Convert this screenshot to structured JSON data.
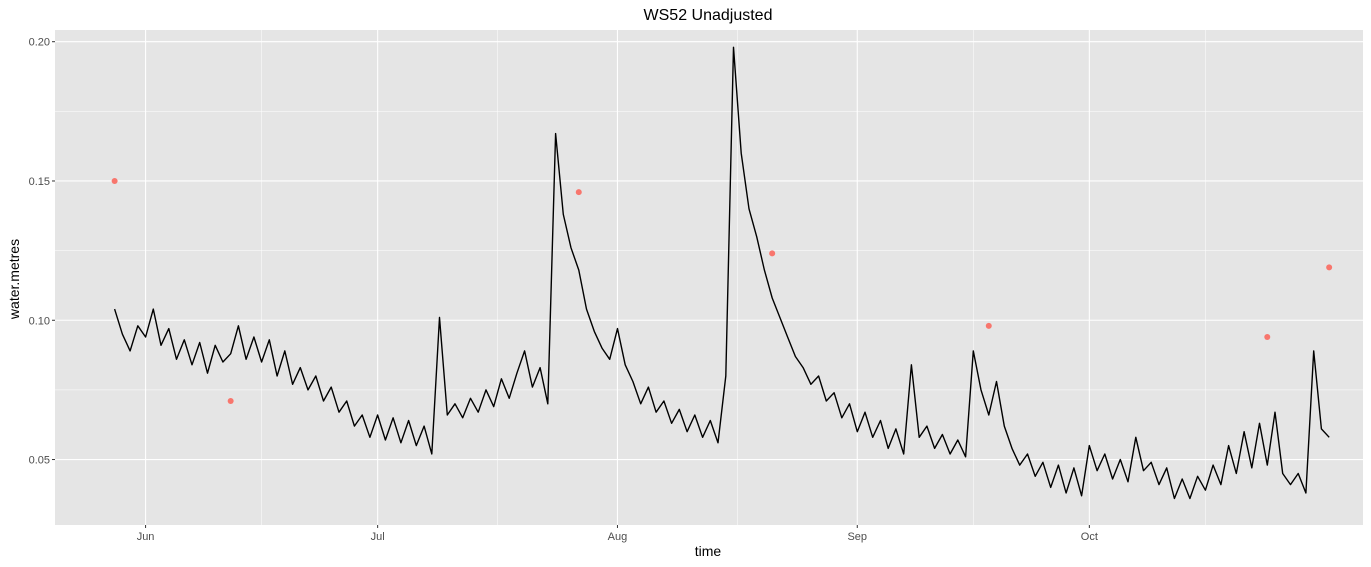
{
  "chart_data": {
    "type": "line",
    "title": "WS52 Unadjusted",
    "xlabel": "time",
    "ylabel": "water.metres",
    "x_ticks": [
      {
        "date": "2019-06-01",
        "label": "Jun"
      },
      {
        "date": "2019-07-01",
        "label": "Jul"
      },
      {
        "date": "2019-08-01",
        "label": "Aug"
      },
      {
        "date": "2019-09-01",
        "label": "Sep"
      },
      {
        "date": "2019-10-01",
        "label": "Oct"
      }
    ],
    "y_ticks": [
      0.05,
      0.1,
      0.15,
      0.2
    ],
    "y_tick_labels": [
      "0.05",
      "0.10",
      "0.15",
      "0.20"
    ],
    "xlim": [
      "2019-05-20T07:00",
      "2019-11-05T09:00"
    ],
    "ylim": [
      0.0265,
      0.2042
    ],
    "grid": true,
    "legend": "none",
    "colors": {
      "panel": "#e5e5e5",
      "grid": "#ffffff",
      "line": "#000000",
      "points": "#f8766d"
    },
    "series": [
      {
        "kind": "line",
        "points": [
          [
            "2019-05-28",
            0.104
          ],
          [
            "2019-05-29",
            0.095
          ],
          [
            "2019-05-30",
            0.089
          ],
          [
            "2019-05-31",
            0.098
          ],
          [
            "2019-06-01",
            0.094
          ],
          [
            "2019-06-02",
            0.104
          ],
          [
            "2019-06-03",
            0.091
          ],
          [
            "2019-06-04",
            0.097
          ],
          [
            "2019-06-05",
            0.086
          ],
          [
            "2019-06-06",
            0.093
          ],
          [
            "2019-06-07",
            0.084
          ],
          [
            "2019-06-08",
            0.092
          ],
          [
            "2019-06-09",
            0.081
          ],
          [
            "2019-06-10",
            0.091
          ],
          [
            "2019-06-11",
            0.085
          ],
          [
            "2019-06-12",
            0.088
          ],
          [
            "2019-06-13",
            0.098
          ],
          [
            "2019-06-14",
            0.086
          ],
          [
            "2019-06-15",
            0.094
          ],
          [
            "2019-06-16",
            0.085
          ],
          [
            "2019-06-17",
            0.093
          ],
          [
            "2019-06-18",
            0.08
          ],
          [
            "2019-06-19",
            0.089
          ],
          [
            "2019-06-20",
            0.077
          ],
          [
            "2019-06-21",
            0.083
          ],
          [
            "2019-06-22",
            0.075
          ],
          [
            "2019-06-23",
            0.08
          ],
          [
            "2019-06-24",
            0.071
          ],
          [
            "2019-06-25",
            0.076
          ],
          [
            "2019-06-26",
            0.067
          ],
          [
            "2019-06-27",
            0.071
          ],
          [
            "2019-06-28",
            0.062
          ],
          [
            "2019-06-29",
            0.066
          ],
          [
            "2019-06-30",
            0.058
          ],
          [
            "2019-07-01",
            0.066
          ],
          [
            "2019-07-02",
            0.057
          ],
          [
            "2019-07-03",
            0.065
          ],
          [
            "2019-07-04",
            0.056
          ],
          [
            "2019-07-05",
            0.064
          ],
          [
            "2019-07-06",
            0.055
          ],
          [
            "2019-07-07",
            0.062
          ],
          [
            "2019-07-08",
            0.052
          ],
          [
            "2019-07-09",
            0.101
          ],
          [
            "2019-07-10",
            0.066
          ],
          [
            "2019-07-11",
            0.07
          ],
          [
            "2019-07-12",
            0.065
          ],
          [
            "2019-07-13",
            0.072
          ],
          [
            "2019-07-14",
            0.067
          ],
          [
            "2019-07-15",
            0.075
          ],
          [
            "2019-07-16",
            0.069
          ],
          [
            "2019-07-17",
            0.079
          ],
          [
            "2019-07-18",
            0.072
          ],
          [
            "2019-07-19",
            0.081
          ],
          [
            "2019-07-20",
            0.089
          ],
          [
            "2019-07-21",
            0.076
          ],
          [
            "2019-07-22",
            0.083
          ],
          [
            "2019-07-23",
            0.07
          ],
          [
            "2019-07-24",
            0.167
          ],
          [
            "2019-07-25",
            0.138
          ],
          [
            "2019-07-26",
            0.126
          ],
          [
            "2019-07-27",
            0.118
          ],
          [
            "2019-07-28",
            0.104
          ],
          [
            "2019-07-29",
            0.096
          ],
          [
            "2019-07-30",
            0.09
          ],
          [
            "2019-07-31",
            0.086
          ],
          [
            "2019-08-01",
            0.097
          ],
          [
            "2019-08-02",
            0.084
          ],
          [
            "2019-08-03",
            0.078
          ],
          [
            "2019-08-04",
            0.07
          ],
          [
            "2019-08-05",
            0.076
          ],
          [
            "2019-08-06",
            0.067
          ],
          [
            "2019-08-07",
            0.071
          ],
          [
            "2019-08-08",
            0.063
          ],
          [
            "2019-08-09",
            0.068
          ],
          [
            "2019-08-10",
            0.06
          ],
          [
            "2019-08-11",
            0.066
          ],
          [
            "2019-08-12",
            0.058
          ],
          [
            "2019-08-13",
            0.064
          ],
          [
            "2019-08-14",
            0.056
          ],
          [
            "2019-08-15",
            0.08
          ],
          [
            "2019-08-16",
            0.198
          ],
          [
            "2019-08-17",
            0.16
          ],
          [
            "2019-08-18",
            0.14
          ],
          [
            "2019-08-19",
            0.13
          ],
          [
            "2019-08-20",
            0.118
          ],
          [
            "2019-08-21",
            0.108
          ],
          [
            "2019-08-22",
            0.101
          ],
          [
            "2019-08-23",
            0.094
          ],
          [
            "2019-08-24",
            0.087
          ],
          [
            "2019-08-25",
            0.083
          ],
          [
            "2019-08-26",
            0.077
          ],
          [
            "2019-08-27",
            0.08
          ],
          [
            "2019-08-28",
            0.071
          ],
          [
            "2019-08-29",
            0.074
          ],
          [
            "2019-08-30",
            0.065
          ],
          [
            "2019-08-31",
            0.07
          ],
          [
            "2019-09-01",
            0.06
          ],
          [
            "2019-09-02",
            0.067
          ],
          [
            "2019-09-03",
            0.058
          ],
          [
            "2019-09-04",
            0.064
          ],
          [
            "2019-09-05",
            0.054
          ],
          [
            "2019-09-06",
            0.061
          ],
          [
            "2019-09-07",
            0.052
          ],
          [
            "2019-09-08",
            0.084
          ],
          [
            "2019-09-09",
            0.058
          ],
          [
            "2019-09-10",
            0.062
          ],
          [
            "2019-09-11",
            0.054
          ],
          [
            "2019-09-12",
            0.059
          ],
          [
            "2019-09-13",
            0.052
          ],
          [
            "2019-09-14",
            0.057
          ],
          [
            "2019-09-15",
            0.051
          ],
          [
            "2019-09-16",
            0.089
          ],
          [
            "2019-09-17",
            0.075
          ],
          [
            "2019-09-18",
            0.066
          ],
          [
            "2019-09-19",
            0.078
          ],
          [
            "2019-09-20",
            0.062
          ],
          [
            "2019-09-21",
            0.054
          ],
          [
            "2019-09-22",
            0.048
          ],
          [
            "2019-09-23",
            0.052
          ],
          [
            "2019-09-24",
            0.044
          ],
          [
            "2019-09-25",
            0.049
          ],
          [
            "2019-09-26",
            0.04
          ],
          [
            "2019-09-27",
            0.048
          ],
          [
            "2019-09-28",
            0.038
          ],
          [
            "2019-09-29",
            0.047
          ],
          [
            "2019-09-30",
            0.037
          ],
          [
            "2019-10-01",
            0.055
          ],
          [
            "2019-10-02",
            0.046
          ],
          [
            "2019-10-03",
            0.052
          ],
          [
            "2019-10-04",
            0.043
          ],
          [
            "2019-10-05",
            0.05
          ],
          [
            "2019-10-06",
            0.042
          ],
          [
            "2019-10-07",
            0.058
          ],
          [
            "2019-10-08",
            0.046
          ],
          [
            "2019-10-09",
            0.049
          ],
          [
            "2019-10-10",
            0.041
          ],
          [
            "2019-10-11",
            0.047
          ],
          [
            "2019-10-12",
            0.036
          ],
          [
            "2019-10-13",
            0.043
          ],
          [
            "2019-10-14",
            0.036
          ],
          [
            "2019-10-15",
            0.044
          ],
          [
            "2019-10-16",
            0.039
          ],
          [
            "2019-10-17",
            0.048
          ],
          [
            "2019-10-18",
            0.041
          ],
          [
            "2019-10-19",
            0.055
          ],
          [
            "2019-10-20",
            0.045
          ],
          [
            "2019-10-21",
            0.06
          ],
          [
            "2019-10-22",
            0.047
          ],
          [
            "2019-10-23",
            0.063
          ],
          [
            "2019-10-24",
            0.048
          ],
          [
            "2019-10-25",
            0.067
          ],
          [
            "2019-10-26",
            0.045
          ],
          [
            "2019-10-27",
            0.041
          ],
          [
            "2019-10-28",
            0.045
          ],
          [
            "2019-10-29",
            0.038
          ],
          [
            "2019-10-30",
            0.089
          ],
          [
            "2019-10-31",
            0.061
          ],
          [
            "2019-11-01",
            0.058
          ]
        ]
      },
      {
        "kind": "scatter",
        "points": [
          [
            "2019-05-28",
            0.15
          ],
          [
            "2019-06-12",
            0.071
          ],
          [
            "2019-07-27",
            0.146
          ],
          [
            "2019-08-21",
            0.124
          ],
          [
            "2019-09-18",
            0.098
          ],
          [
            "2019-10-24",
            0.094
          ],
          [
            "2019-11-01",
            0.119
          ]
        ]
      }
    ]
  }
}
